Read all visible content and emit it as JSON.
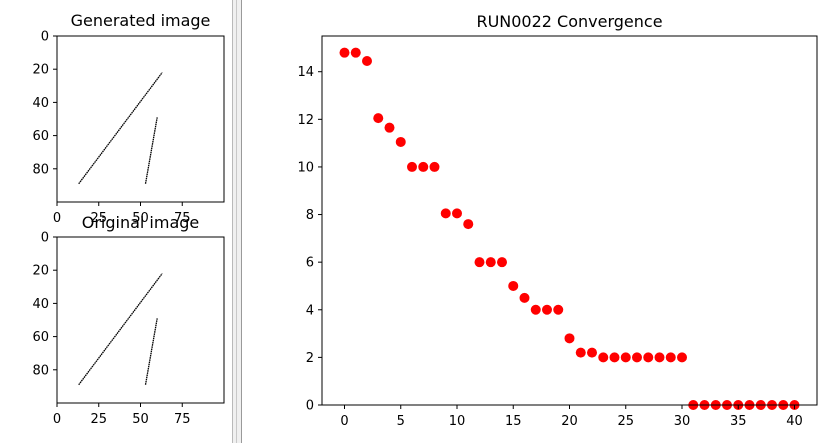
{
  "chart_data": [
    {
      "type": "image",
      "title": "Generated image",
      "xticks": [
        0,
        25,
        50,
        75
      ],
      "yticks": [
        0,
        20,
        40,
        60,
        80
      ],
      "xlim": [
        0,
        100
      ],
      "ylim": [
        100,
        0
      ],
      "strokes": [
        {
          "from": [
            13,
            89
          ],
          "to": [
            63,
            22
          ]
        },
        {
          "from": [
            53,
            89
          ],
          "to": [
            60,
            49
          ]
        }
      ]
    },
    {
      "type": "image",
      "title": "Original image",
      "xticks": [
        0,
        25,
        50,
        75
      ],
      "yticks": [
        0,
        20,
        40,
        60,
        80
      ],
      "xlim": [
        0,
        100
      ],
      "ylim": [
        100,
        0
      ],
      "strokes": [
        {
          "from": [
            13,
            89
          ],
          "to": [
            63,
            22
          ]
        },
        {
          "from": [
            53,
            89
          ],
          "to": [
            60,
            49
          ]
        }
      ]
    },
    {
      "type": "scatter",
      "title": "RUN0022 Convergence",
      "xlabel": "",
      "ylabel": "",
      "xlim": [
        -2,
        42
      ],
      "ylim": [
        0,
        15.5
      ],
      "xticks": [
        0,
        5,
        10,
        15,
        20,
        25,
        30,
        35,
        40
      ],
      "yticks": [
        0,
        2,
        4,
        6,
        8,
        10,
        12,
        14
      ],
      "color": "#ff0000",
      "x": [
        0,
        1,
        2,
        3,
        4,
        5,
        6,
        7,
        8,
        9,
        10,
        11,
        12,
        13,
        14,
        15,
        16,
        17,
        18,
        19,
        20,
        21,
        22,
        23,
        24,
        25,
        26,
        27,
        28,
        29,
        30,
        31,
        32,
        33,
        34,
        35,
        36,
        37,
        38,
        39,
        40
      ],
      "y": [
        14.8,
        14.8,
        14.45,
        12.05,
        11.65,
        11.05,
        10,
        10,
        10,
        8.05,
        8.05,
        7.6,
        6,
        6,
        6,
        5,
        4.5,
        4,
        4,
        4,
        2.8,
        2.2,
        2.2,
        2,
        2,
        2,
        2,
        2,
        2,
        2,
        2,
        0,
        0,
        0,
        0,
        0,
        0,
        0,
        0,
        0,
        0
      ]
    }
  ]
}
